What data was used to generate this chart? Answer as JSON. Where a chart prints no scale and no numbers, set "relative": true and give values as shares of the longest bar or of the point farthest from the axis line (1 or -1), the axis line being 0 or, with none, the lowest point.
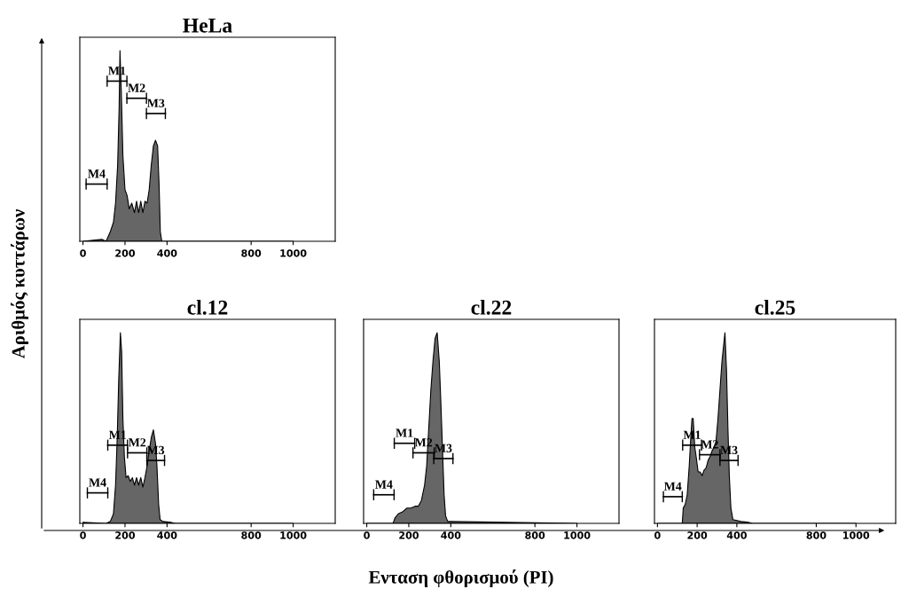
{
  "chart_data": [
    {
      "type": "area",
      "title": "HeLa",
      "relative": true,
      "xlim": [
        -15,
        1200
      ],
      "xticks": [
        0,
        200,
        400,
        800,
        1000
      ],
      "tick_labels": "x",
      "grid": false,
      "series": [
        {
          "color": "#666666",
          "x": [
            0,
            90,
            110,
            130,
            145,
            155,
            165,
            172,
            176,
            182,
            190,
            200,
            210,
            220,
            232,
            245,
            255,
            265,
            275,
            285,
            295,
            305,
            315,
            325,
            335,
            345,
            355,
            362,
            368,
            375,
            1000
          ],
          "values": [
            0,
            0.01,
            0,
            0.05,
            0.1,
            0.2,
            0.4,
            0.7,
            1.0,
            0.8,
            0.45,
            0.27,
            0.24,
            0.17,
            0.2,
            0.15,
            0.21,
            0.15,
            0.21,
            0.15,
            0.21,
            0.2,
            0.27,
            0.4,
            0.5,
            0.53,
            0.5,
            0.3,
            0.05,
            0,
            0
          ]
        },
        {
          "type": "line",
          "color": "#000000",
          "x": [
            115,
            209
          ],
          "values": [
            0.84,
            0.84
          ]
        },
        {
          "type": "line",
          "color": "#000000",
          "x": [
            209,
            302
          ],
          "values": [
            0.75,
            0.75
          ]
        },
        {
          "type": "line",
          "color": "#000000",
          "x": [
            302,
            392
          ],
          "values": [
            0.67,
            0.67
          ]
        },
        {
          "type": "line",
          "color": "#000000",
          "x": [
            15,
            115
          ],
          "values": [
            0.3,
            0.3
          ]
        }
      ],
      "annotations": [
        {
          "text": "M1",
          "x": 162,
          "y": 0.84
        },
        {
          "text": "M2",
          "x": 255.5,
          "y": 0.75
        },
        {
          "text": "M3",
          "x": 347,
          "y": 0.67
        },
        {
          "text": "M4",
          "x": 65,
          "y": 0.3
        }
      ]
    },
    {
      "type": "area",
      "title": "cl.12",
      "xlabel": "Ενταση φθορισμού (PI)",
      "ylabel": "Αριθμός κυττάρων",
      "relative": true,
      "xlim": [
        -15,
        1200
      ],
      "xticks": [
        0,
        200,
        400,
        800,
        1000
      ],
      "tick_labels": "x",
      "grid": false,
      "series": [
        {
          "color": "#666666",
          "x": [
            0,
            110,
            130,
            145,
            155,
            163,
            170,
            178,
            184,
            190,
            197,
            205,
            215,
            225,
            235,
            245,
            255,
            265,
            275,
            285,
            295,
            305,
            315,
            325,
            335,
            345,
            352,
            360,
            367,
            380,
            420,
            440,
            1000
          ],
          "values": [
            0.005,
            0,
            0.01,
            0.05,
            0.2,
            0.45,
            0.75,
            1.0,
            0.9,
            0.55,
            0.35,
            0.24,
            0.25,
            0.22,
            0.24,
            0.2,
            0.24,
            0.2,
            0.24,
            0.19,
            0.24,
            0.3,
            0.38,
            0.45,
            0.49,
            0.42,
            0.3,
            0.1,
            0.02,
            0.01,
            0.005,
            0,
            0
          ]
        },
        {
          "type": "line",
          "color": "#000000",
          "x": [
            118,
            212
          ],
          "values": [
            0.41,
            0.41
          ]
        },
        {
          "type": "line",
          "color": "#000000",
          "x": [
            212,
            304
          ],
          "values": [
            0.37,
            0.37
          ]
        },
        {
          "type": "line",
          "color": "#000000",
          "x": [
            304,
            388
          ],
          "values": [
            0.33,
            0.33
          ]
        },
        {
          "type": "line",
          "color": "#000000",
          "x": [
            21,
            118
          ],
          "values": [
            0.16,
            0.16
          ]
        }
      ],
      "annotations": [
        {
          "text": "M1",
          "x": 165,
          "y": 0.41
        },
        {
          "text": "M2",
          "x": 258,
          "y": 0.37
        },
        {
          "text": "M3",
          "x": 346,
          "y": 0.33
        },
        {
          "text": "M4",
          "x": 69.5,
          "y": 0.16
        }
      ]
    },
    {
      "type": "area",
      "title": "cl.22",
      "relative": true,
      "xlim": [
        -15,
        1200
      ],
      "xticks": [
        0,
        200,
        400,
        800,
        1000
      ],
      "tick_labels": "x",
      "grid": false,
      "series": [
        {
          "color": "#666666",
          "x": [
            0,
            125,
            135,
            150,
            170,
            190,
            210,
            230,
            245,
            260,
            275,
            285,
            295,
            305,
            315,
            325,
            335,
            345,
            352,
            360,
            368,
            375,
            385,
            1000
          ],
          "values": [
            0,
            0,
            0.03,
            0.05,
            0.06,
            0.08,
            0.08,
            0.09,
            0.09,
            0.12,
            0.2,
            0.3,
            0.5,
            0.7,
            0.85,
            0.97,
            1.0,
            0.85,
            0.65,
            0.4,
            0.15,
            0.04,
            0.01,
            0
          ]
        },
        {
          "type": "line",
          "color": "#000000",
          "x": [
            131,
            228
          ],
          "values": [
            0.42,
            0.42
          ]
        },
        {
          "type": "line",
          "color": "#000000",
          "x": [
            220,
            321
          ],
          "values": [
            0.37,
            0.37
          ]
        },
        {
          "type": "line",
          "color": "#000000",
          "x": [
            319,
            410
          ],
          "values": [
            0.34,
            0.34
          ]
        },
        {
          "type": "line",
          "color": "#000000",
          "x": [
            33,
            130
          ],
          "values": [
            0.15,
            0.15
          ]
        }
      ],
      "annotations": [
        {
          "text": "M1",
          "x": 179.5,
          "y": 0.42
        },
        {
          "text": "M2",
          "x": 270.5,
          "y": 0.37
        },
        {
          "text": "M3",
          "x": 364.5,
          "y": 0.34
        },
        {
          "text": "M4",
          "x": 81.5,
          "y": 0.15
        }
      ]
    },
    {
      "type": "area",
      "title": "cl.25",
      "relative": true,
      "xlim": [
        -15,
        1200
      ],
      "xticks": [
        0,
        200,
        400,
        800,
        1000
      ],
      "tick_labels": "x",
      "grid": false,
      "series": [
        {
          "color": "#666666",
          "x": [
            0,
            125,
            130,
            140,
            150,
            160,
            168,
            174,
            180,
            188,
            195,
            205,
            215,
            225,
            235,
            245,
            255,
            265,
            275,
            285,
            295,
            305,
            315,
            325,
            335,
            340,
            348,
            355,
            362,
            370,
            380,
            420,
            460,
            480,
            1000
          ],
          "values": [
            0,
            0,
            0.08,
            0.1,
            0.15,
            0.3,
            0.45,
            0.55,
            0.55,
            0.4,
            0.35,
            0.27,
            0.27,
            0.25,
            0.28,
            0.29,
            0.33,
            0.35,
            0.38,
            0.4,
            0.43,
            0.55,
            0.7,
            0.85,
            0.95,
            1.0,
            0.8,
            0.5,
            0.25,
            0.08,
            0.02,
            0.01,
            0.005,
            0,
            0
          ]
        },
        {
          "type": "line",
          "color": "#000000",
          "x": [
            127,
            222
          ],
          "values": [
            0.41,
            0.41
          ]
        },
        {
          "type": "line",
          "color": "#000000",
          "x": [
            212,
            315
          ],
          "values": [
            0.36,
            0.36
          ]
        },
        {
          "type": "line",
          "color": "#000000",
          "x": [
            315,
            406
          ],
          "values": [
            0.33,
            0.33
          ]
        },
        {
          "type": "line",
          "color": "#000000",
          "x": [
            30,
            125
          ],
          "values": [
            0.14,
            0.14
          ]
        }
      ],
      "annotations": [
        {
          "text": "M1",
          "x": 174.5,
          "y": 0.41
        },
        {
          "text": "M2",
          "x": 263.5,
          "y": 0.36
        },
        {
          "text": "M3",
          "x": 360.5,
          "y": 0.33
        },
        {
          "text": "M4",
          "x": 77.5,
          "y": 0.14
        }
      ]
    }
  ]
}
